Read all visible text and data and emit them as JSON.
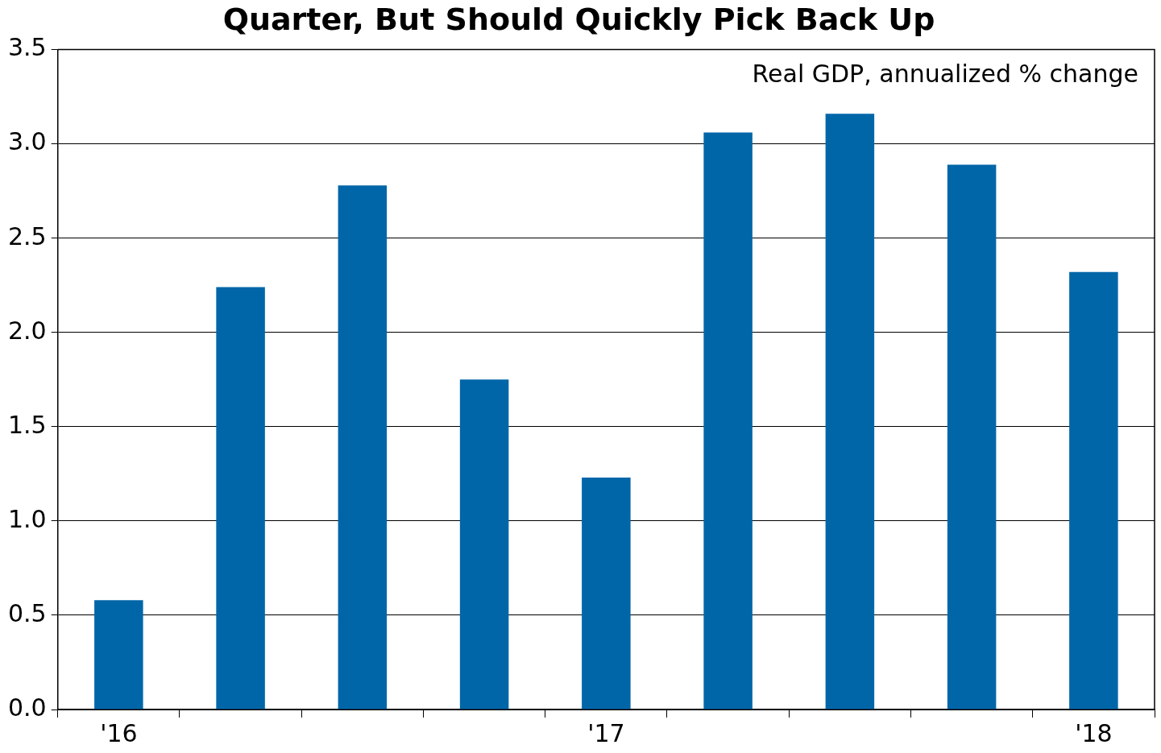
{
  "chart_data": {
    "type": "bar",
    "title": "Quarter, But Should Quickly Pick Back Up",
    "annotations": [
      "Real GDP, annualized % change"
    ],
    "categories": [
      "'16",
      null,
      null,
      null,
      "'17",
      null,
      null,
      null,
      "'18"
    ],
    "values": [
      0.58,
      2.24,
      2.78,
      1.75,
      1.23,
      3.06,
      3.16,
      2.89,
      2.32
    ],
    "color": "#0066a8",
    "ylim": [
      0,
      3.5
    ],
    "yticks": [
      {
        "value": 0,
        "label": "0.0"
      },
      {
        "value": 0.5,
        "label": "0.5"
      },
      {
        "value": 1,
        "label": "1.0"
      },
      {
        "value": 1.5,
        "label": "1.5"
      },
      {
        "value": 2,
        "label": "2.0"
      },
      {
        "value": 2.5,
        "label": "2.5"
      },
      {
        "value": 3,
        "label": "3.0"
      },
      {
        "value": 3.5,
        "label": "3.5"
      }
    ],
    "grid": "y"
  }
}
